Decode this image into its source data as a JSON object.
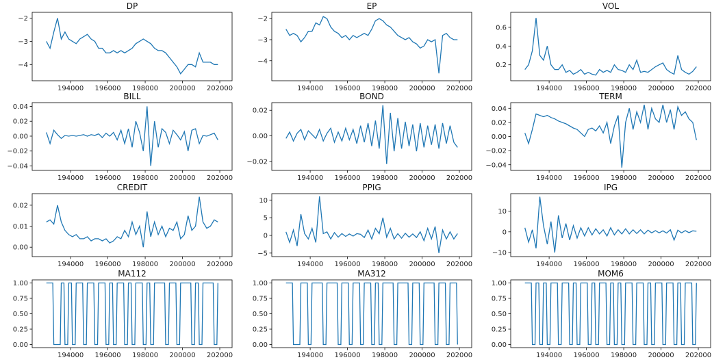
{
  "chart_data": [
    {
      "type": "line",
      "title": "DP",
      "yticks": [
        -4,
        -3,
        -2
      ],
      "yticklabels": [
        "−4",
        "−3",
        "−2"
      ],
      "ylim": [
        -4.7,
        -1.75
      ],
      "values": [
        -3.0,
        -3.3,
        -2.6,
        -2.0,
        -2.9,
        -2.6,
        -2.9,
        -3.0,
        -3.1,
        -2.9,
        -2.8,
        -2.7,
        -2.9,
        -3.0,
        -3.3,
        -3.3,
        -3.5,
        -3.5,
        -3.4,
        -3.5,
        -3.4,
        -3.5,
        -3.4,
        -3.3,
        -3.1,
        -3.0,
        -2.9,
        -3.0,
        -3.1,
        -3.3,
        -3.4,
        -3.4,
        -3.5,
        -3.7,
        -3.9,
        -4.1,
        -4.4,
        -4.2,
        -4.0,
        -4.0,
        -4.1,
        -3.5,
        -3.9,
        -3.9,
        -3.9,
        -4.0,
        -4.0
      ]
    },
    {
      "type": "line",
      "title": "EP",
      "yticks": [
        -4,
        -3,
        -2
      ],
      "yticklabels": [
        "−4",
        "−3",
        "−2"
      ],
      "ylim": [
        -4.95,
        -1.7
      ],
      "values": [
        -2.5,
        -2.8,
        -2.7,
        -2.8,
        -3.1,
        -2.9,
        -2.6,
        -2.6,
        -2.2,
        -2.3,
        -1.9,
        -2.0,
        -2.4,
        -2.6,
        -2.7,
        -2.9,
        -2.8,
        -3.0,
        -2.8,
        -2.9,
        -2.8,
        -2.7,
        -2.8,
        -2.5,
        -2.1,
        -2.0,
        -2.1,
        -2.3,
        -2.4,
        -2.6,
        -2.8,
        -2.9,
        -3.0,
        -2.9,
        -3.1,
        -3.2,
        -3.4,
        -3.3,
        -3.0,
        -3.1,
        -3.0,
        -4.6,
        -2.8,
        -2.7,
        -2.9,
        -3.0,
        -3.0
      ]
    },
    {
      "type": "line",
      "title": "VOL",
      "yticks": [
        0.2,
        0.4,
        0.6
      ],
      "yticklabels": [
        "0.2",
        "0.4",
        "0.6"
      ],
      "ylim": [
        0.03,
        0.76
      ],
      "values": [
        0.15,
        0.2,
        0.35,
        0.7,
        0.3,
        0.25,
        0.4,
        0.2,
        0.15,
        0.15,
        0.2,
        0.12,
        0.14,
        0.1,
        0.12,
        0.15,
        0.1,
        0.12,
        0.1,
        0.09,
        0.15,
        0.12,
        0.14,
        0.12,
        0.2,
        0.15,
        0.14,
        0.12,
        0.2,
        0.15,
        0.25,
        0.12,
        0.13,
        0.12,
        0.15,
        0.18,
        0.2,
        0.22,
        0.15,
        0.12,
        0.1,
        0.3,
        0.15,
        0.12,
        0.1,
        0.13,
        0.18
      ]
    },
    {
      "type": "line",
      "title": "BILL",
      "yticks": [
        -0.04,
        -0.02,
        0,
        0.02,
        0.04
      ],
      "yticklabels": [
        "−0.04",
        "−0.02",
        "0.00",
        "0.02",
        "0.04"
      ],
      "ylim": [
        -0.046,
        0.045
      ],
      "values": [
        0.005,
        -0.01,
        0.008,
        0.002,
        -0.003,
        0.001,
        0.0,
        0.001,
        0.0,
        0.001,
        0.002,
        0.0,
        0.002,
        0.001,
        0.003,
        -0.002,
        0.004,
        0.0,
        0.005,
        -0.005,
        0.008,
        -0.01,
        0.01,
        -0.015,
        0.02,
        0.005,
        -0.02,
        0.04,
        -0.04,
        0.02,
        -0.015,
        0.01,
        0.005,
        -0.01,
        0.008,
        0.002,
        -0.005,
        0.006,
        -0.02,
        0.008,
        0.01,
        -0.01,
        0.001,
        0.0,
        0.002,
        0.004,
        -0.005
      ]
    },
    {
      "type": "line",
      "title": "BOND",
      "yticks": [
        -0.02,
        0,
        0.02
      ],
      "yticklabels": [
        "−0.02",
        "0.00",
        "0.02"
      ],
      "ylim": [
        -0.027,
        0.026
      ],
      "values": [
        -0.002,
        0.003,
        -0.004,
        0.002,
        0.005,
        -0.003,
        0.004,
        0.001,
        -0.002,
        0.005,
        -0.004,
        0.002,
        0.006,
        -0.005,
        0.003,
        -0.004,
        0.006,
        -0.003,
        0.005,
        -0.006,
        0.008,
        -0.005,
        0.01,
        -0.008,
        0.012,
        -0.01,
        0.024,
        -0.022,
        0.018,
        -0.012,
        0.014,
        -0.01,
        0.011,
        -0.008,
        0.009,
        -0.012,
        0.01,
        -0.009,
        0.008,
        -0.007,
        0.009,
        -0.01,
        0.01,
        -0.006,
        0.008,
        -0.005,
        -0.009
      ]
    },
    {
      "type": "line",
      "title": "TERM",
      "yticks": [
        -0.04,
        -0.02,
        0,
        0.02,
        0.04
      ],
      "yticklabels": [
        "−0.04",
        "−0.02",
        "0.00",
        "0.02",
        "0.04"
      ],
      "ylim": [
        -0.048,
        0.048
      ],
      "values": [
        0.005,
        -0.01,
        0.01,
        0.032,
        0.03,
        0.028,
        0.03,
        0.027,
        0.025,
        0.022,
        0.02,
        0.018,
        0.015,
        0.012,
        0.01,
        0.005,
        0.0,
        0.01,
        0.012,
        0.008,
        0.015,
        0.005,
        0.02,
        -0.01,
        0.015,
        0.03,
        -0.044,
        0.02,
        0.04,
        0.01,
        0.035,
        0.02,
        0.045,
        0.01,
        0.04,
        0.025,
        0.02,
        0.045,
        0.02,
        0.038,
        0.01,
        0.042,
        0.03,
        0.035,
        0.025,
        0.02,
        -0.005
      ]
    },
    {
      "type": "line",
      "title": "CREDIT",
      "yticks": [
        0,
        0.01,
        0.02
      ],
      "yticklabels": [
        "0.00",
        "0.01",
        "0.02"
      ],
      "ylim": [
        -0.0045,
        0.0255
      ],
      "values": [
        0.012,
        0.013,
        0.011,
        0.02,
        0.012,
        0.008,
        0.006,
        0.005,
        0.006,
        0.004,
        0.004,
        0.005,
        0.003,
        0.004,
        0.004,
        0.003,
        0.004,
        0.002,
        0.003,
        0.005,
        0.004,
        0.008,
        0.005,
        0.012,
        0.006,
        0.01,
        0.0,
        0.017,
        0.005,
        0.012,
        0.006,
        0.01,
        0.005,
        0.009,
        0.008,
        0.012,
        0.004,
        0.006,
        0.015,
        0.008,
        0.01,
        0.024,
        0.012,
        0.009,
        0.01,
        0.013,
        0.012
      ]
    },
    {
      "type": "line",
      "title": "PPIG",
      "yticks": [
        -5,
        0,
        5,
        10
      ],
      "yticklabels": [
        "−5",
        "0",
        "5",
        "10"
      ],
      "ylim": [
        -6,
        11.8
      ],
      "values": [
        1,
        -2,
        1.5,
        -3,
        6,
        0.5,
        -1,
        2,
        -2,
        11,
        0.5,
        1,
        -1,
        0.8,
        -0.5,
        0.5,
        -0.3,
        0.4,
        -0.2,
        0.5,
        0.3,
        -0.6,
        1.5,
        -1,
        2,
        0.5,
        5,
        -0.5,
        2,
        -1,
        0.5,
        -0.8,
        0.6,
        -0.5,
        0.4,
        -0.6,
        1,
        -1.5,
        2,
        -1,
        2.5,
        -5,
        1.5,
        -1,
        1,
        -1,
        0.5
      ]
    },
    {
      "type": "line",
      "title": "IPG",
      "yticks": [
        -10,
        0,
        10
      ],
      "yticklabels": [
        "−10",
        "0",
        "10"
      ],
      "ylim": [
        -12,
        18.5
      ],
      "values": [
        2,
        -5,
        1,
        -8,
        17,
        3,
        -6,
        5,
        -10,
        8,
        -3,
        4,
        -4,
        3,
        -3,
        2,
        -2,
        2,
        -1.5,
        1.5,
        -1,
        1,
        -2,
        2,
        -1.5,
        1,
        -1,
        1.5,
        -1,
        1,
        -0.8,
        1,
        -1,
        0.8,
        -0.5,
        0.6,
        -0.5,
        0.5,
        -0.6,
        1,
        -4,
        0.8,
        -0.5,
        0.6,
        -0.4,
        0.5,
        0.3
      ]
    },
    {
      "type": "line",
      "title": "MA112",
      "step": true,
      "yticks": [
        0,
        0.25,
        0.5,
        0.75,
        1
      ],
      "yticklabels": [
        "0.00",
        "0.25",
        "0.50",
        "0.75",
        "1.00"
      ],
      "ylim": [
        -0.05,
        1.05
      ],
      "values": [
        1,
        1,
        0,
        0,
        1,
        0,
        1,
        0,
        1,
        1,
        0,
        1,
        1,
        0,
        1,
        1,
        0,
        1,
        0,
        1,
        1,
        0,
        1,
        0,
        1,
        1,
        0,
        1,
        0,
        1,
        1,
        1,
        0,
        1,
        1,
        0,
        1,
        1,
        1,
        0,
        1,
        0,
        1,
        1,
        1,
        0,
        1
      ]
    },
    {
      "type": "line",
      "title": "MA312",
      "step": true,
      "yticks": [
        0,
        0.25,
        0.5,
        0.75,
        1
      ],
      "yticklabels": [
        "0.00",
        "0.25",
        "0.50",
        "0.75",
        "1.00"
      ],
      "ylim": [
        -0.05,
        1.05
      ],
      "values": [
        1,
        1,
        0,
        0,
        1,
        1,
        0,
        1,
        1,
        1,
        0,
        1,
        1,
        1,
        0,
        1,
        1,
        0,
        1,
        1,
        0,
        1,
        1,
        0,
        1,
        0,
        1,
        1,
        1,
        0,
        1,
        1,
        1,
        0,
        1,
        1,
        0,
        1,
        1,
        1,
        0,
        1,
        1,
        0,
        1,
        1,
        0
      ]
    },
    {
      "type": "line",
      "title": "MOM6",
      "step": true,
      "yticks": [
        0,
        0.25,
        0.5,
        0.75,
        1
      ],
      "yticklabels": [
        "0.00",
        "0.25",
        "0.50",
        "0.75",
        "1.00"
      ],
      "ylim": [
        -0.05,
        1.05
      ],
      "values": [
        1,
        1,
        0,
        1,
        0,
        1,
        0,
        1,
        1,
        0,
        1,
        1,
        0,
        1,
        0,
        1,
        1,
        0,
        1,
        0,
        1,
        1,
        0,
        1,
        0,
        1,
        0,
        1,
        1,
        0,
        1,
        1,
        0,
        1,
        0,
        1,
        1,
        0,
        1,
        1,
        0,
        1,
        0,
        1,
        1,
        0,
        1
      ]
    }
  ],
  "x": [
    192700,
    192900,
    193100,
    193300,
    193500,
    193700,
    193900,
    194100,
    194300,
    194500,
    194700,
    194900,
    195100,
    195300,
    195500,
    195700,
    195900,
    196100,
    196300,
    196500,
    196700,
    196900,
    197100,
    197300,
    197500,
    197700,
    197900,
    198100,
    198300,
    198500,
    198700,
    198900,
    199100,
    199300,
    199500,
    199700,
    199900,
    200100,
    200300,
    200500,
    200700,
    200900,
    201100,
    201300,
    201500,
    201700,
    201900
  ],
  "xlim": [
    191940,
    202660
  ],
  "xticks": [
    194000,
    196000,
    198000,
    200000,
    202000
  ],
  "xticklabels": [
    "194000",
    "196000",
    "198000",
    "200000",
    "202000"
  ],
  "line_color": "#1f77b4"
}
